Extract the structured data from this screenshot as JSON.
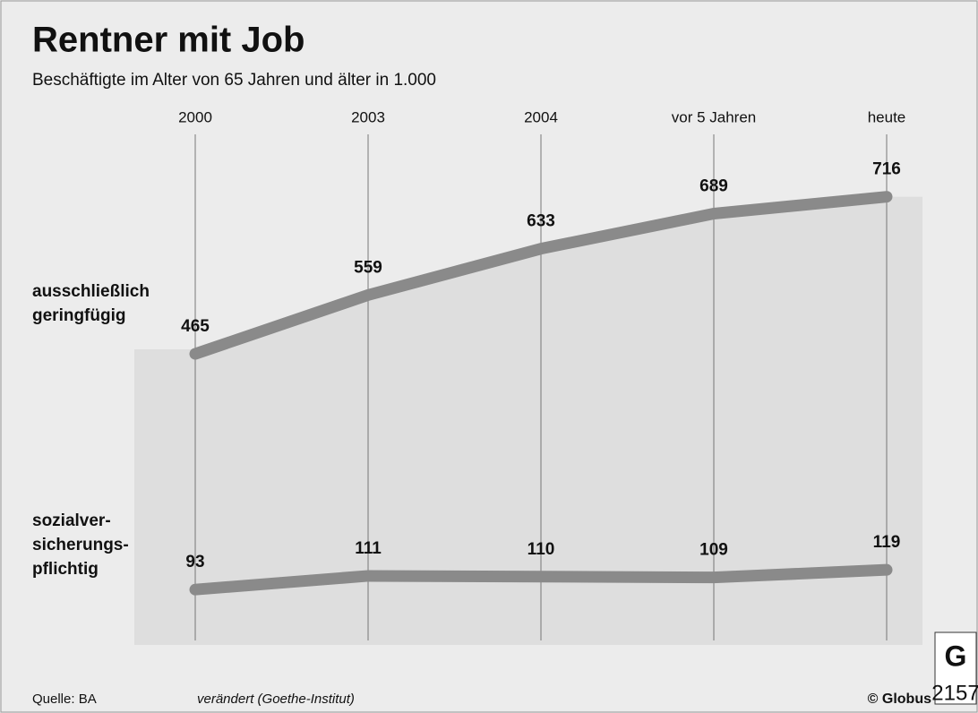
{
  "chart_data": {
    "type": "line",
    "title": "Rentner mit Job",
    "subtitle": "Beschäftigte im Alter von 65 Jahren und älter in 1.000",
    "categories": [
      "2000",
      "2003",
      "2004",
      "vor 5 Jahren",
      "heute"
    ],
    "series": [
      {
        "name": "ausschließlich\ngeringfügig",
        "color": "#8a8a8a",
        "values": [
          465,
          559,
          633,
          689,
          716
        ]
      },
      {
        "name": "sozialver-\nsicherungs-\npflichtig",
        "color": "#8a8a8a",
        "axis": "y2",
        "values": [
          93,
          111,
          110,
          109,
          119
        ]
      }
    ],
    "ylim": [
      0,
      830
    ],
    "y2lim": [
      20,
      705
    ],
    "source": "Quelle: BA",
    "note": "verändert (Goethe-Institut)",
    "credit": "© Globus",
    "code": "2157"
  }
}
